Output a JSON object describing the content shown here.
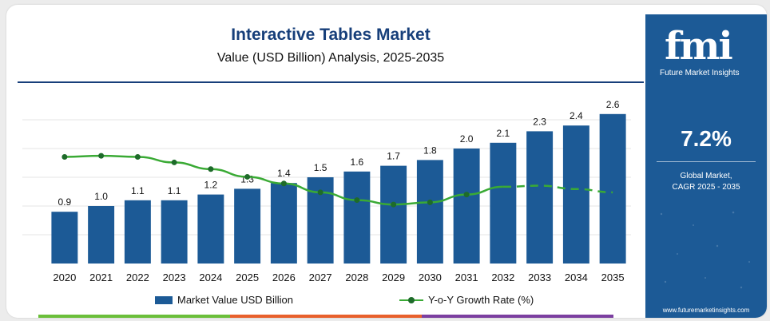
{
  "chart_data": {
    "type": "bar",
    "title": "Interactive Tables Market",
    "subtitle": "Value (USD Billion) Analysis, 2025-2035",
    "categories": [
      "2020",
      "2021",
      "2022",
      "2023",
      "2024",
      "2025",
      "2026",
      "2027",
      "2028",
      "2029",
      "2030",
      "2031",
      "2032",
      "2033",
      "2034",
      "2035"
    ],
    "series": [
      {
        "name": "Market Value USD Billion",
        "type": "bar",
        "values": [
          0.9,
          1.0,
          1.1,
          1.1,
          1.2,
          1.3,
          1.4,
          1.5,
          1.6,
          1.7,
          1.8,
          2.0,
          2.1,
          2.3,
          2.4,
          2.6
        ],
        "labels": [
          "0.9",
          "1.0",
          "1.1",
          "1.1",
          "1.2",
          "1.3",
          "1.4",
          "1.5",
          "1.6",
          "1.7",
          "1.8",
          "2.0",
          "2.1",
          "2.3",
          "2.4",
          "2.6"
        ],
        "color": "#1c5a96"
      },
      {
        "name": "Y-o-Y Growth Rate (%)",
        "type": "line",
        "values": [
          11.1,
          11.2,
          11.1,
          10.6,
          10.0,
          9.3,
          8.7,
          7.9,
          7.2,
          6.8,
          7.0,
          7.7,
          8.4,
          8.5,
          8.2,
          7.9
        ],
        "dashed_from_index": 12,
        "color": "#3aaa35",
        "marker_color": "#1e6b2a"
      }
    ],
    "ylim": [
      0,
      3.0
    ],
    "grid": true,
    "legend_position": "bottom"
  },
  "side_panel": {
    "brand": "fmi",
    "brand_subtitle": "Future Market Insights",
    "cagr_value": "7.2%",
    "cagr_label_line1": "Global Market,",
    "cagr_label_line2": "CAGR 2025 - 2035",
    "website": "www.futuremarketinsights.com"
  },
  "colors": {
    "title": "#173f7a",
    "panel_bg": "#1c5a96",
    "stripe": [
      "#6bbf3a",
      "#e8602c",
      "#7b3fa0"
    ]
  }
}
